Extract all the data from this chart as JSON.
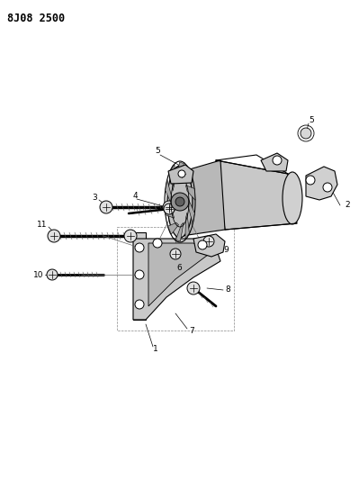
{
  "title": "8J08 2500",
  "bg_color": "#ffffff",
  "fig_width": 3.99,
  "fig_height": 5.33,
  "dpi": 100,
  "label_fontsize": 6.5,
  "title_fontsize": 8.5
}
